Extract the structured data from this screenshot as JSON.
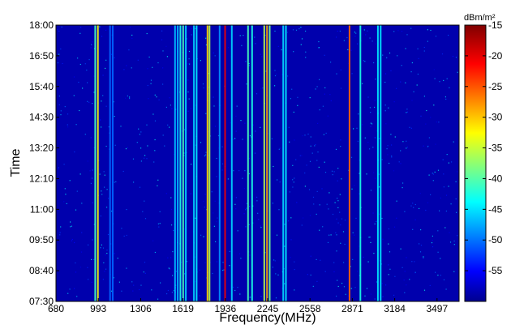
{
  "chart_data": {
    "type": "heatmap",
    "title": "",
    "xlabel": "Frequency(MHz)",
    "ylabel": "Time",
    "xlim": [
      680,
      3660
    ],
    "x_ticks": [
      "680",
      "993",
      "1306",
      "1619",
      "1936",
      "2245",
      "2558",
      "2871",
      "3184",
      "3497"
    ],
    "y_ticks": [
      "07:30",
      "08:40",
      "09:50",
      "11:00",
      "12:10",
      "13:20",
      "14:30",
      "15:40",
      "16:50",
      "18:00"
    ],
    "y_range": [
      "07:30",
      "18:00"
    ],
    "colorbar": {
      "label": "dBm/m²",
      "range": [
        -60,
        -15
      ],
      "ticks": [
        "-15",
        "-20",
        "-25",
        "-30",
        "-35",
        "-40",
        "-45",
        "-50",
        "-55"
      ],
      "colormap": "jet"
    },
    "background_level_dBm_m2": -58,
    "emission_lines": [
      {
        "frequency_MHz": 970,
        "level_dBm_m2": -40
      },
      {
        "frequency_MHz": 990,
        "level_dBm_m2": -32
      },
      {
        "frequency_MHz": 1080,
        "level_dBm_m2": -50
      },
      {
        "frequency_MHz": 1100,
        "level_dBm_m2": -50
      },
      {
        "frequency_MHz": 1560,
        "level_dBm_m2": -46
      },
      {
        "frequency_MHz": 1580,
        "level_dBm_m2": -46
      },
      {
        "frequency_MHz": 1600,
        "level_dBm_m2": -42
      },
      {
        "frequency_MHz": 1620,
        "level_dBm_m2": -40
      },
      {
        "frequency_MHz": 1640,
        "level_dBm_m2": -45
      },
      {
        "frequency_MHz": 1700,
        "level_dBm_m2": -45
      },
      {
        "frequency_MHz": 1720,
        "level_dBm_m2": -44
      },
      {
        "frequency_MHz": 1800,
        "level_dBm_m2": -30
      },
      {
        "frequency_MHz": 1815,
        "level_dBm_m2": -35
      },
      {
        "frequency_MHz": 1890,
        "level_dBm_m2": -48
      },
      {
        "frequency_MHz": 1930,
        "level_dBm_m2": -20
      },
      {
        "frequency_MHz": 1980,
        "level_dBm_m2": -45
      },
      {
        "frequency_MHz": 2100,
        "level_dBm_m2": -40
      },
      {
        "frequency_MHz": 2130,
        "level_dBm_m2": -42
      },
      {
        "frequency_MHz": 2220,
        "level_dBm_m2": -35
      },
      {
        "frequency_MHz": 2240,
        "level_dBm_m2": -28
      },
      {
        "frequency_MHz": 2260,
        "level_dBm_m2": -38
      },
      {
        "frequency_MHz": 2360,
        "level_dBm_m2": -45
      },
      {
        "frequency_MHz": 2380,
        "level_dBm_m2": -44
      },
      {
        "frequency_MHz": 2850,
        "level_dBm_m2": -25
      },
      {
        "frequency_MHz": 2930,
        "level_dBm_m2": -42
      },
      {
        "frequency_MHz": 3060,
        "level_dBm_m2": -44
      },
      {
        "frequency_MHz": 3080,
        "level_dBm_m2": -44
      }
    ]
  }
}
